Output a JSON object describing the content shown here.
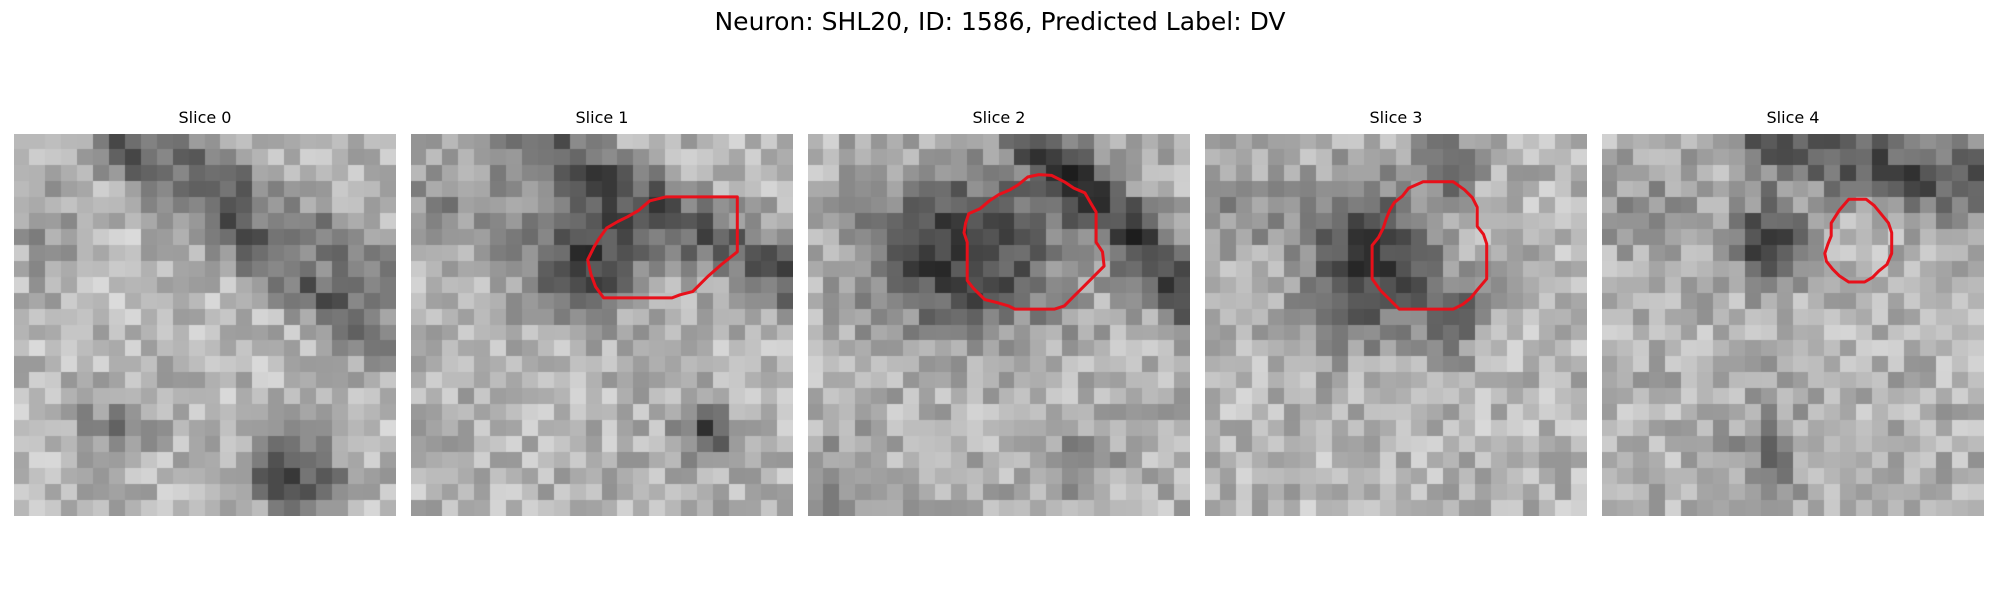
{
  "figure": {
    "title": "Neuron: SHL20, ID: 1586, Predicted Label: DV"
  },
  "colors": {
    "contour": "#e8101a",
    "background": "#ffffff"
  },
  "panels": [
    {
      "title": "Slice 0",
      "contour": null
    },
    {
      "title": "Slice 1",
      "contour": [
        [
          16,
          3.95
        ],
        [
          20.5,
          3.95
        ],
        [
          20.5,
          7.4
        ],
        [
          19.5,
          8.2
        ],
        [
          18.7,
          8.9
        ],
        [
          18.2,
          9.4
        ],
        [
          17.7,
          9.9
        ],
        [
          16.9,
          10.1
        ],
        [
          16.4,
          10.3
        ],
        [
          12.1,
          10.3
        ],
        [
          11.6,
          9.6
        ],
        [
          11.3,
          8.8
        ],
        [
          11.1,
          7.9
        ],
        [
          11.5,
          7.1
        ],
        [
          11.8,
          6.6
        ],
        [
          12.3,
          5.9
        ],
        [
          13.0,
          5.5
        ],
        [
          13.6,
          5.2
        ],
        [
          14.3,
          4.8
        ],
        [
          15.0,
          4.2
        ]
      ]
    },
    {
      "title": "Slice 2",
      "contour": [
        [
          14.5,
          2.55
        ],
        [
          15.3,
          2.6
        ],
        [
          16.1,
          3.0
        ],
        [
          16.7,
          3.4
        ],
        [
          17.4,
          3.7
        ],
        [
          17.8,
          4.4
        ],
        [
          18.1,
          4.9
        ],
        [
          18.1,
          6.8
        ],
        [
          18.5,
          7.4
        ],
        [
          18.6,
          8.3
        ],
        [
          18.0,
          8.9
        ],
        [
          17.3,
          9.6
        ],
        [
          16.7,
          10.2
        ],
        [
          16.1,
          10.8
        ],
        [
          15.5,
          11.0
        ],
        [
          13.0,
          11.0
        ],
        [
          12.6,
          10.8
        ],
        [
          11.9,
          10.6
        ],
        [
          11.1,
          10.4
        ],
        [
          10.4,
          9.7
        ],
        [
          10.0,
          9.2
        ],
        [
          10.0,
          6.8
        ],
        [
          9.8,
          6.2
        ],
        [
          9.9,
          5.6
        ],
        [
          10.1,
          5.0
        ],
        [
          10.8,
          4.7
        ],
        [
          11.4,
          4.2
        ],
        [
          12.0,
          3.8
        ],
        [
          12.7,
          3.5
        ],
        [
          13.2,
          3.2
        ],
        [
          13.8,
          2.7
        ]
      ]
    },
    {
      "title": "Slice 3",
      "contour": [
        [
          13.7,
          3.0
        ],
        [
          15.6,
          3.0
        ],
        [
          16.3,
          3.5
        ],
        [
          16.8,
          4.0
        ],
        [
          17.1,
          4.6
        ],
        [
          17.1,
          5.8
        ],
        [
          17.5,
          6.3
        ],
        [
          17.7,
          6.9
        ],
        [
          17.7,
          9.1
        ],
        [
          17.1,
          9.8
        ],
        [
          16.7,
          10.3
        ],
        [
          16.2,
          10.7
        ],
        [
          15.6,
          11.0
        ],
        [
          12.2,
          11.0
        ],
        [
          11.6,
          10.4
        ],
        [
          11.0,
          9.8
        ],
        [
          10.5,
          9.1
        ],
        [
          10.5,
          7.0
        ],
        [
          10.9,
          6.5
        ],
        [
          11.2,
          5.9
        ],
        [
          11.4,
          5.3
        ],
        [
          11.6,
          4.8
        ],
        [
          11.9,
          4.3
        ],
        [
          12.4,
          3.9
        ],
        [
          12.8,
          3.4
        ]
      ]
    },
    {
      "title": "Slice 4",
      "contour": [
        [
          15.5,
          4.1
        ],
        [
          16.6,
          4.1
        ],
        [
          17.1,
          4.5
        ],
        [
          17.6,
          5.1
        ],
        [
          18.0,
          5.6
        ],
        [
          18.2,
          6.2
        ],
        [
          18.2,
          7.5
        ],
        [
          17.9,
          8.2
        ],
        [
          17.4,
          8.6
        ],
        [
          17.0,
          9.0
        ],
        [
          16.5,
          9.3
        ],
        [
          15.5,
          9.3
        ],
        [
          14.9,
          8.9
        ],
        [
          14.5,
          8.5
        ],
        [
          14.1,
          8.0
        ],
        [
          14.0,
          7.5
        ],
        [
          14.2,
          6.9
        ],
        [
          14.4,
          6.4
        ],
        [
          14.4,
          5.6
        ],
        [
          14.9,
          4.8
        ]
      ]
    }
  ]
}
